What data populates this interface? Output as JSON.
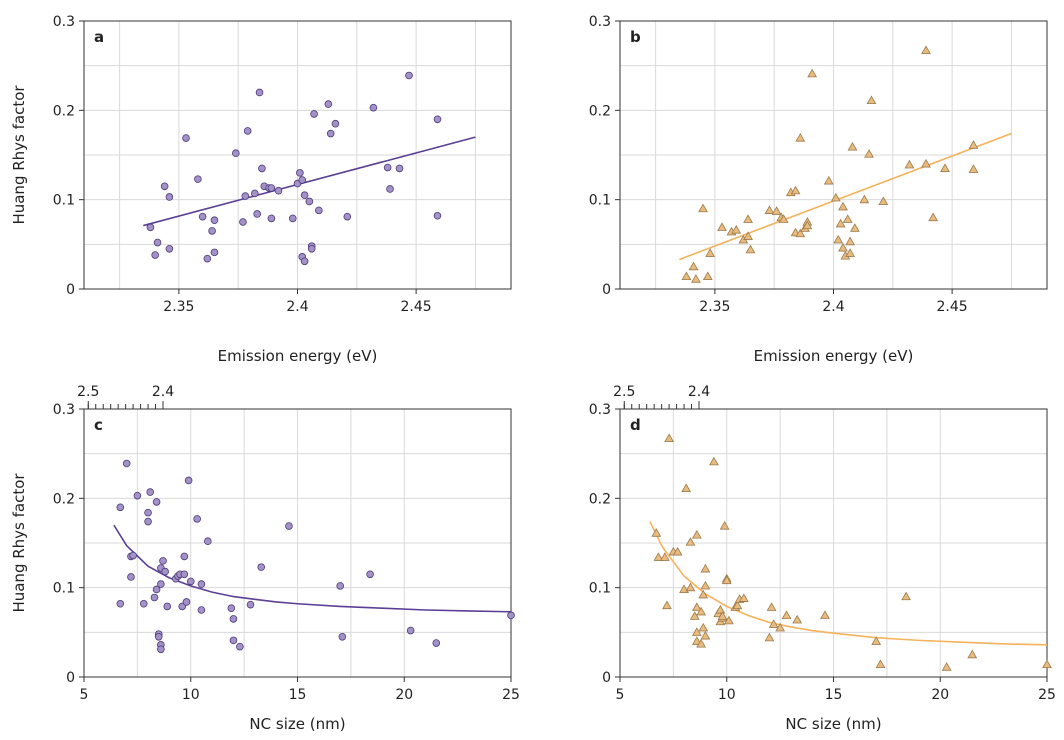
{
  "colors": {
    "purple_line": "#5b3f96",
    "purple_fill": "#a391c8",
    "purple_edge": "#4b3b7a",
    "orange_line": "#f5b25b",
    "orange_fill": "#e9bb7e",
    "orange_edge": "#9a7a4c",
    "grid": "#d9d9d9",
    "frame": "#333333"
  },
  "chart_data": [
    {
      "panel": "a",
      "type": "scatter",
      "xlabel": "Emission energy (eV)",
      "ylabel": "Huang Rhys factor",
      "xlim": [
        2.31,
        2.49
      ],
      "ylim": [
        0,
        0.3
      ],
      "xticks": [
        2.35,
        2.4,
        2.45
      ],
      "xtick_labels": [
        "2.35",
        "2.4",
        "2.45"
      ],
      "yticks": [
        0,
        0.1,
        0.2,
        0.3
      ],
      "ytick_labels": [
        "0",
        "0.1",
        "0.2",
        "0.3"
      ],
      "marker": "circle",
      "color": "purple",
      "grid": true,
      "points": [
        [
          2.338,
          0.069
        ],
        [
          2.34,
          0.038
        ],
        [
          2.341,
          0.052
        ],
        [
          2.344,
          0.115
        ],
        [
          2.346,
          0.103
        ],
        [
          2.346,
          0.045
        ],
        [
          2.353,
          0.169
        ],
        [
          2.358,
          0.123
        ],
        [
          2.36,
          0.081
        ],
        [
          2.362,
          0.034
        ],
        [
          2.364,
          0.065
        ],
        [
          2.365,
          0.041
        ],
        [
          2.365,
          0.077
        ],
        [
          2.374,
          0.152
        ],
        [
          2.377,
          0.075
        ],
        [
          2.378,
          0.104
        ],
        [
          2.379,
          0.177
        ],
        [
          2.382,
          0.107
        ],
        [
          2.383,
          0.084
        ],
        [
          2.384,
          0.22
        ],
        [
          2.385,
          0.135
        ],
        [
          2.386,
          0.115
        ],
        [
          2.388,
          0.113
        ],
        [
          2.389,
          0.079
        ],
        [
          2.389,
          0.113
        ],
        [
          2.392,
          0.11
        ],
        [
          2.398,
          0.079
        ],
        [
          2.4,
          0.118
        ],
        [
          2.401,
          0.13
        ],
        [
          2.402,
          0.122
        ],
        [
          2.402,
          0.036
        ],
        [
          2.403,
          0.031
        ],
        [
          2.403,
          0.105
        ],
        [
          2.405,
          0.098
        ],
        [
          2.406,
          0.048
        ],
        [
          2.406,
          0.045
        ],
        [
          2.407,
          0.196
        ],
        [
          2.409,
          0.088
        ],
        [
          2.413,
          0.207
        ],
        [
          2.414,
          0.174
        ],
        [
          2.416,
          0.185
        ],
        [
          2.421,
          0.081
        ],
        [
          2.432,
          0.203
        ],
        [
          2.438,
          0.136
        ],
        [
          2.439,
          0.112
        ],
        [
          2.443,
          0.135
        ],
        [
          2.447,
          0.239
        ],
        [
          2.459,
          0.19
        ],
        [
          2.459,
          0.082
        ]
      ],
      "fit": {
        "kind": "linear",
        "x": [
          2.335,
          2.475
        ],
        "y": [
          0.071,
          0.17
        ]
      }
    },
    {
      "panel": "b",
      "type": "scatter",
      "xlabel": "Emission energy (eV)",
      "ylabel": "",
      "xlim": [
        2.31,
        2.49
      ],
      "ylim": [
        0,
        0.3
      ],
      "xticks": [
        2.35,
        2.4,
        2.45
      ],
      "xtick_labels": [
        "2.35",
        "2.4",
        "2.45"
      ],
      "yticks": [
        0,
        0.1,
        0.2,
        0.3
      ],
      "ytick_labels": [
        "0",
        "0.1",
        "0.2",
        "0.3"
      ],
      "marker": "triangle",
      "color": "orange",
      "grid": true,
      "points": [
        [
          2.338,
          0.014
        ],
        [
          2.341,
          0.025
        ],
        [
          2.342,
          0.011
        ],
        [
          2.345,
          0.09
        ],
        [
          2.347,
          0.014
        ],
        [
          2.348,
          0.04
        ],
        [
          2.353,
          0.069
        ],
        [
          2.357,
          0.064
        ],
        [
          2.359,
          0.066
        ],
        [
          2.362,
          0.055
        ],
        [
          2.364,
          0.078
        ],
        [
          2.364,
          0.059
        ],
        [
          2.365,
          0.044
        ],
        [
          2.373,
          0.088
        ],
        [
          2.376,
          0.087
        ],
        [
          2.378,
          0.08
        ],
        [
          2.379,
          0.078
        ],
        [
          2.382,
          0.108
        ],
        [
          2.384,
          0.11
        ],
        [
          2.384,
          0.063
        ],
        [
          2.386,
          0.169
        ],
        [
          2.386,
          0.062
        ],
        [
          2.388,
          0.068
        ],
        [
          2.389,
          0.075
        ],
        [
          2.389,
          0.071
        ],
        [
          2.391,
          0.241
        ],
        [
          2.398,
          0.121
        ],
        [
          2.401,
          0.102
        ],
        [
          2.402,
          0.055
        ],
        [
          2.403,
          0.073
        ],
        [
          2.404,
          0.092
        ],
        [
          2.404,
          0.046
        ],
        [
          2.405,
          0.037
        ],
        [
          2.406,
          0.078
        ],
        [
          2.407,
          0.053
        ],
        [
          2.407,
          0.04
        ],
        [
          2.408,
          0.159
        ],
        [
          2.409,
          0.068
        ],
        [
          2.413,
          0.1
        ],
        [
          2.415,
          0.151
        ],
        [
          2.416,
          0.211
        ],
        [
          2.421,
          0.098
        ],
        [
          2.432,
          0.139
        ],
        [
          2.439,
          0.267
        ],
        [
          2.439,
          0.14
        ],
        [
          2.442,
          0.08
        ],
        [
          2.447,
          0.135
        ],
        [
          2.459,
          0.161
        ],
        [
          2.459,
          0.134
        ]
      ],
      "fit": {
        "kind": "linear",
        "x": [
          2.335,
          2.475
        ],
        "y": [
          0.033,
          0.174
        ]
      }
    },
    {
      "panel": "c",
      "type": "scatter",
      "xlabel": "NC size (nm)",
      "ylabel": "Huang Rhys factor",
      "xlim": [
        5,
        25
      ],
      "ylim": [
        0,
        0.3
      ],
      "xticks": [
        5,
        10,
        15,
        20,
        25
      ],
      "xtick_labels": [
        "5",
        "10",
        "15",
        "20",
        "25"
      ],
      "yticks": [
        0,
        0.1,
        0.2,
        0.3
      ],
      "ytick_labels": [
        "0",
        "0.1",
        "0.2",
        "0.3"
      ],
      "top_axis": {
        "ticks": [
          2.5,
          2.4
        ],
        "tick_labels": [
          "2.5",
          "2.4"
        ]
      },
      "marker": "circle",
      "color": "purple",
      "grid": true,
      "points": [
        [
          6.7,
          0.19
        ],
        [
          6.7,
          0.082
        ],
        [
          7.0,
          0.239
        ],
        [
          7.2,
          0.135
        ],
        [
          7.2,
          0.112
        ],
        [
          7.3,
          0.136
        ],
        [
          7.5,
          0.203
        ],
        [
          7.8,
          0.082
        ],
        [
          8.0,
          0.184
        ],
        [
          8.0,
          0.174
        ],
        [
          8.1,
          0.207
        ],
        [
          8.3,
          0.089
        ],
        [
          8.4,
          0.196
        ],
        [
          8.4,
          0.098
        ],
        [
          8.5,
          0.048
        ],
        [
          8.5,
          0.045
        ],
        [
          8.6,
          0.104
        ],
        [
          8.6,
          0.036
        ],
        [
          8.6,
          0.031
        ],
        [
          8.6,
          0.122
        ],
        [
          8.7,
          0.13
        ],
        [
          8.8,
          0.118
        ],
        [
          8.9,
          0.079
        ],
        [
          9.3,
          0.11
        ],
        [
          9.4,
          0.113
        ],
        [
          9.5,
          0.115
        ],
        [
          9.6,
          0.079
        ],
        [
          9.7,
          0.135
        ],
        [
          9.7,
          0.115
        ],
        [
          9.8,
          0.084
        ],
        [
          9.9,
          0.22
        ],
        [
          10.0,
          0.107
        ],
        [
          10.3,
          0.177
        ],
        [
          10.5,
          0.104
        ],
        [
          10.5,
          0.075
        ],
        [
          10.8,
          0.152
        ],
        [
          11.9,
          0.077
        ],
        [
          12.0,
          0.041
        ],
        [
          12.0,
          0.065
        ],
        [
          12.3,
          0.034
        ],
        [
          12.8,
          0.081
        ],
        [
          13.3,
          0.123
        ],
        [
          14.6,
          0.169
        ],
        [
          17.0,
          0.102
        ],
        [
          17.1,
          0.045
        ],
        [
          18.4,
          0.115
        ],
        [
          20.3,
          0.052
        ],
        [
          21.5,
          0.038
        ],
        [
          25.0,
          0.069
        ]
      ],
      "fit": {
        "kind": "curve",
        "x": [
          6.4,
          7,
          8,
          9,
          10,
          11,
          12,
          13,
          14,
          15,
          17,
          19,
          21,
          23,
          25
        ],
        "y": [
          0.17,
          0.147,
          0.124,
          0.111,
          0.102,
          0.095,
          0.09,
          0.087,
          0.084,
          0.082,
          0.079,
          0.077,
          0.075,
          0.074,
          0.073
        ]
      }
    },
    {
      "panel": "d",
      "type": "scatter",
      "xlabel": "NC size (nm)",
      "ylabel": "",
      "xlim": [
        5,
        25
      ],
      "ylim": [
        0,
        0.3
      ],
      "xticks": [
        5,
        10,
        15,
        20,
        25
      ],
      "xtick_labels": [
        "5",
        "10",
        "15",
        "20",
        "25"
      ],
      "yticks": [
        0,
        0.1,
        0.2,
        0.3
      ],
      "ytick_labels": [
        "0",
        "0.1",
        "0.2",
        "0.3"
      ],
      "top_axis": {
        "ticks": [
          2.5,
          2.4
        ],
        "tick_labels": [
          "2.5",
          "2.4"
        ]
      },
      "marker": "triangle",
      "color": "orange",
      "grid": true,
      "points": [
        [
          6.7,
          0.161
        ],
        [
          6.8,
          0.134
        ],
        [
          7.1,
          0.134
        ],
        [
          7.2,
          0.08
        ],
        [
          7.3,
          0.267
        ],
        [
          7.5,
          0.14
        ],
        [
          7.7,
          0.14
        ],
        [
          8.0,
          0.098
        ],
        [
          8.1,
          0.211
        ],
        [
          8.3,
          0.1
        ],
        [
          8.3,
          0.151
        ],
        [
          8.5,
          0.068
        ],
        [
          8.6,
          0.159
        ],
        [
          8.6,
          0.078
        ],
        [
          8.6,
          0.05
        ],
        [
          8.6,
          0.04
        ],
        [
          8.8,
          0.073
        ],
        [
          8.8,
          0.037
        ],
        [
          8.9,
          0.055
        ],
        [
          8.9,
          0.092
        ],
        [
          9.0,
          0.102
        ],
        [
          9.0,
          0.121
        ],
        [
          9.0,
          0.046
        ],
        [
          9.4,
          0.241
        ],
        [
          9.6,
          0.071
        ],
        [
          9.7,
          0.075
        ],
        [
          9.7,
          0.062
        ],
        [
          9.8,
          0.066
        ],
        [
          9.8,
          0.068
        ],
        [
          9.9,
          0.169
        ],
        [
          10.0,
          0.11
        ],
        [
          10.0,
          0.108
        ],
        [
          10.1,
          0.063
        ],
        [
          10.4,
          0.078
        ],
        [
          10.5,
          0.08
        ],
        [
          10.6,
          0.087
        ],
        [
          10.8,
          0.088
        ],
        [
          12.0,
          0.044
        ],
        [
          12.1,
          0.078
        ],
        [
          12.2,
          0.059
        ],
        [
          12.5,
          0.055
        ],
        [
          12.8,
          0.069
        ],
        [
          13.3,
          0.064
        ],
        [
          14.6,
          0.069
        ],
        [
          17.0,
          0.04
        ],
        [
          17.2,
          0.014
        ],
        [
          18.4,
          0.09
        ],
        [
          20.3,
          0.011
        ],
        [
          21.5,
          0.025
        ],
        [
          25.0,
          0.014
        ]
      ],
      "fit": {
        "kind": "curve",
        "x": [
          6.4,
          7,
          8,
          9,
          10,
          11,
          12,
          13,
          14,
          15,
          17,
          19,
          21,
          23,
          25
        ],
        "y": [
          0.174,
          0.145,
          0.113,
          0.093,
          0.079,
          0.069,
          0.061,
          0.056,
          0.052,
          0.049,
          0.044,
          0.041,
          0.039,
          0.037,
          0.036
        ]
      }
    }
  ]
}
